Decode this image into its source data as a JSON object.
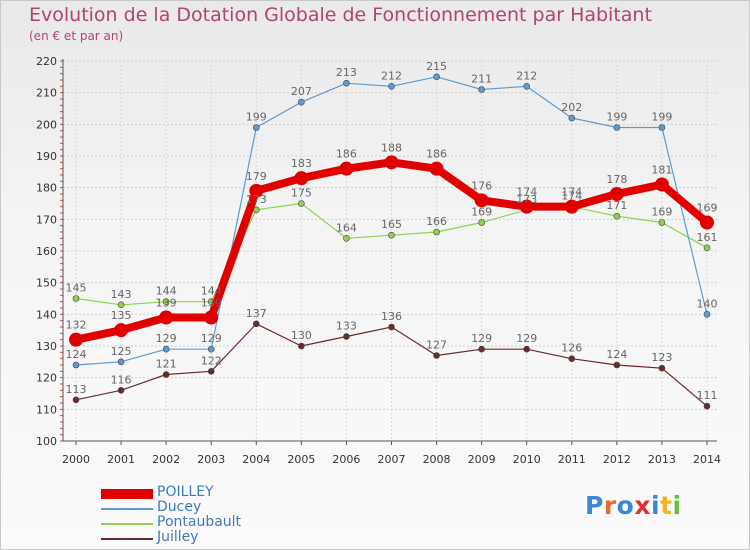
{
  "header": {
    "title": "Evolution de la Dotation Globale de Fonctionnement par Habitant",
    "subtitle": "(en € et par an)"
  },
  "chart_data": {
    "type": "line",
    "title": "Evolution de la Dotation Globale de Fonctionnement par Habitant",
    "subtitle": "(en € et par an)",
    "xlabel": "",
    "ylabel": "",
    "categories": [
      "2000",
      "2001",
      "2002",
      "2003",
      "2004",
      "2005",
      "2006",
      "2007",
      "2008",
      "2009",
      "2010",
      "2011",
      "2012",
      "2013",
      "2014"
    ],
    "ylim": [
      100,
      220
    ],
    "yticks": [
      100,
      110,
      120,
      130,
      140,
      150,
      160,
      170,
      180,
      190,
      200,
      210,
      220
    ],
    "grid": true,
    "legend": "bottom-left",
    "series": [
      {
        "name": "POILLEY",
        "color": "#e00000",
        "values": [
          132,
          135,
          139,
          139,
          179,
          183,
          186,
          188,
          186,
          176,
          174,
          174,
          178,
          181,
          169
        ]
      },
      {
        "name": "Ducey",
        "color": "#5b9bd5",
        "values": [
          124,
          125,
          129,
          129,
          199,
          207,
          213,
          212,
          215,
          211,
          212,
          202,
          199,
          199,
          140
        ]
      },
      {
        "name": "Pontaubault",
        "color": "#8ed24f",
        "values": [
          145,
          143,
          144,
          144,
          173,
          175,
          164,
          165,
          166,
          169,
          173,
          174,
          171,
          169,
          161
        ]
      },
      {
        "name": "Juilley",
        "color": "#6b2a2a",
        "values": [
          113,
          116,
          121,
          122,
          137,
          130,
          133,
          136,
          127,
          129,
          129,
          126,
          124,
          123,
          111
        ]
      }
    ]
  },
  "logo": {
    "text": "Proxiti",
    "colors": [
      "#3a86d8",
      "#e96b2a",
      "#3a86d8",
      "#e32f2f",
      "#3a86d8",
      "#f2b51e",
      "#6cbf3e"
    ]
  }
}
